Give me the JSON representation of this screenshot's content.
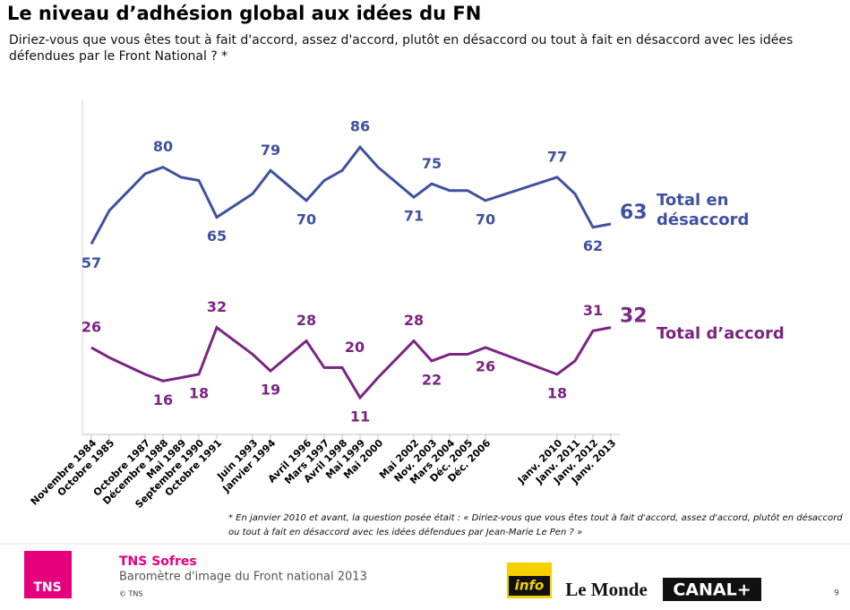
{
  "chart_data": {
    "type": "line",
    "title": "Le niveau d’adhésion global aux idées du FN",
    "subtitle": "Diriez-vous que vous êtes tout à fait d'accord, assez d'accord, plutôt en désaccord ou tout à fait en désaccord avec les idées défendues par le Front National ? *",
    "x": [
      {
        "value": 1984,
        "label": "Novembre 1984"
      },
      {
        "value": 1985,
        "label": "Octobre 1985"
      },
      {
        "value": 1987,
        "label": "Octobre 1987"
      },
      {
        "value": 1988,
        "label": "Décembre 1988"
      },
      {
        "value": 1989,
        "label": "Mai 1989"
      },
      {
        "value": 1990,
        "label": "Septembre 1990"
      },
      {
        "value": 1991,
        "label": "Octobre 1991"
      },
      {
        "value": 1993,
        "label": "Juin 1993"
      },
      {
        "value": 1994,
        "label": "Janvier 1994"
      },
      {
        "value": 1996,
        "label": "Avril 1996"
      },
      {
        "value": 1997,
        "label": "Mars 1997"
      },
      {
        "value": 1998,
        "label": "Avril 1998"
      },
      {
        "value": 1999,
        "label": "Mai 1999"
      },
      {
        "value": 2000,
        "label": "Mai 2000"
      },
      {
        "value": 2002,
        "label": "Mai 2002"
      },
      {
        "value": 2003,
        "label": "Nov. 2003"
      },
      {
        "value": 2004,
        "label": "Mars 2004"
      },
      {
        "value": 2005,
        "label": "Déc. 2005"
      },
      {
        "value": 2006,
        "label": "Déc. 2006"
      },
      {
        "value": 2010,
        "label": "Janv. 2010"
      },
      {
        "value": 2011,
        "label": "Janv. 2011"
      },
      {
        "value": 2012,
        "label": "Janv. 2012"
      },
      {
        "value": 2013,
        "label": "Janv. 2013"
      }
    ],
    "xlim": [
      1983.5,
      2013.5
    ],
    "ylim": [
      0,
      100
    ],
    "series": [
      {
        "name": "Total en désaccord",
        "color": "#3f51a0",
        "values": [
          57,
          67,
          78,
          80,
          77,
          76,
          65,
          72,
          79,
          70,
          76,
          79,
          86,
          80,
          71,
          75,
          73,
          73,
          70,
          77,
          72,
          62,
          63
        ],
        "value_labels": [
          "57",
          null,
          null,
          "80",
          null,
          null,
          "65",
          null,
          "79",
          "70",
          null,
          null,
          "86",
          null,
          "71",
          "75",
          null,
          null,
          "70",
          "77",
          null,
          "62",
          "63"
        ]
      },
      {
        "name": "Total d’accord",
        "color": "#7b2482",
        "values": [
          26,
          23,
          18,
          16,
          17,
          18,
          32,
          24,
          19,
          28,
          20,
          20,
          11,
          17,
          28,
          22,
          24,
          24,
          26,
          18,
          22,
          31,
          32
        ],
        "value_labels": [
          "26",
          null,
          null,
          "16",
          null,
          "18",
          "32",
          null,
          "19",
          "28",
          null,
          "20",
          "11",
          null,
          "28",
          "22",
          null,
          null,
          "26",
          "18",
          null,
          "31",
          "32"
        ]
      }
    ]
  },
  "footnote": "* En janvier 2010 et avant, la question posée était : « Diriez-vous que vous êtes tout à fait d'accord, assez d'accord, plutôt en désaccord ou tout à fait en désaccord avec les idées défendues par Jean-Marie Le Pen ? »",
  "footer": {
    "logo": "TNS",
    "company": "TNS Sofres",
    "study": "Baromètre d'image du Front national 2013",
    "copyright": "© TNS",
    "partners": [
      "info",
      "Le Monde",
      "CANAL+"
    ],
    "page": "9"
  }
}
